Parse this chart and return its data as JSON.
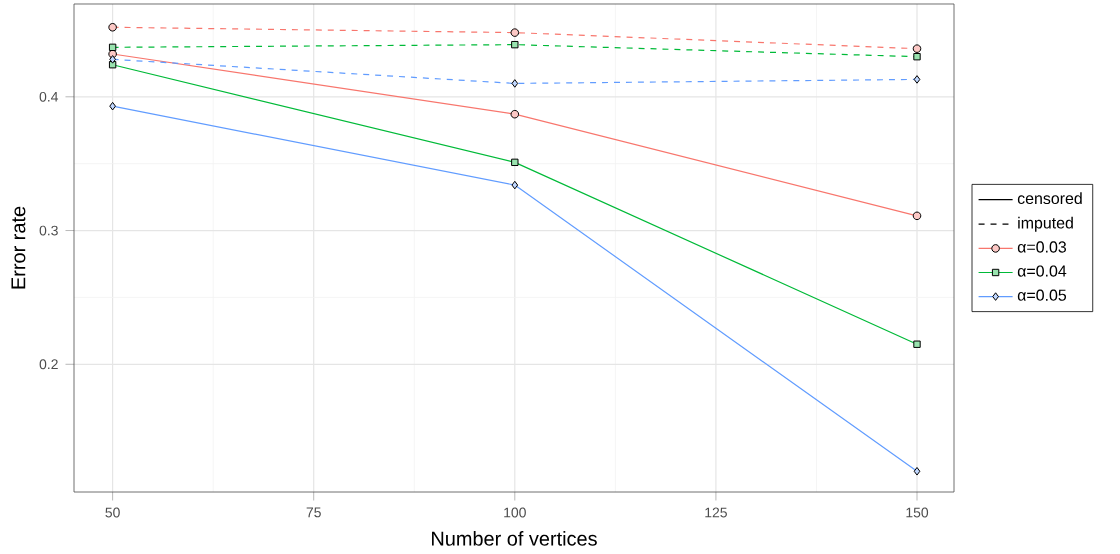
{
  "chart_data": {
    "type": "line",
    "xlabel": "Number of vertices",
    "ylabel": "Error rate",
    "x": [
      50,
      100,
      150
    ],
    "series": [
      {
        "name": "α=0.03",
        "color": "#f8766d",
        "marker": "circle",
        "line_style": "solid",
        "values": [
          0.432,
          0.387,
          0.311
        ]
      },
      {
        "name": "α=0.04",
        "color": "#00ba38",
        "marker": "square",
        "line_style": "solid",
        "values": [
          0.424,
          0.351,
          0.215
        ]
      },
      {
        "name": "α=0.05",
        "color": "#619cff",
        "marker": "diamond",
        "line_style": "solid",
        "values": [
          0.393,
          0.334,
          0.12
        ]
      },
      {
        "color": "#f8766d",
        "marker": "circle",
        "line_style": "dashed",
        "values": [
          0.452,
          0.448,
          0.436
        ]
      },
      {
        "color": "#00ba38",
        "marker": "square",
        "line_style": "dashed",
        "values": [
          0.437,
          0.439,
          0.43
        ]
      },
      {
        "color": "#619cff",
        "marker": "diamond",
        "line_style": "dashed",
        "values": [
          0.428,
          0.41,
          0.413
        ]
      }
    ],
    "annotations": [
      "censored",
      "imputed"
    ],
    "xlim": [
      45.2,
      154.6
    ],
    "ylim": [
      0.1045,
      0.4694
    ],
    "xticks": [
      50,
      75,
      100,
      125,
      150
    ],
    "yticks": [
      0.2,
      0.3,
      0.4
    ],
    "grid": true,
    "legend": "right"
  }
}
